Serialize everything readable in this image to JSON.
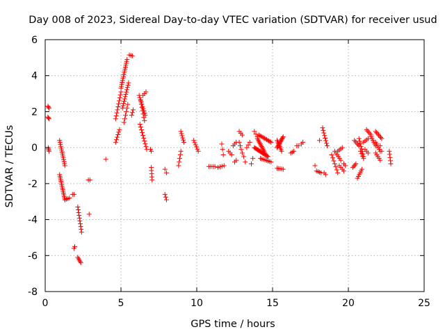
{
  "chart_data": {
    "type": "scatter",
    "title": "Day 008 of 2023, Sidereal Day-to-day VTEC variation (SDTVAR) for receiver usud",
    "xlabel": "GPS time / hours",
    "ylabel": "SDTVAR / TECUs",
    "xlim": [
      0,
      25
    ],
    "ylim": [
      -8,
      6
    ],
    "xticks": [
      0,
      5,
      10,
      15,
      20,
      25
    ],
    "yticks": [
      -8,
      -6,
      -4,
      -2,
      0,
      2,
      4,
      6
    ],
    "grid": true,
    "marker": "+",
    "marker_color": "#ff0000",
    "background": "#ffffff",
    "axis_color": "#000000",
    "grid_color": "#b0b0b0",
    "series": [
      {
        "name": "usud",
        "color": "#ff0000",
        "segments": [
          {
            "x0": 0.18,
            "y0": 2.3,
            "x1": 0.25,
            "y1": 2.2,
            "n": 3
          },
          {
            "x0": 0.18,
            "y0": 1.7,
            "x1": 0.25,
            "y1": 1.6,
            "n": 3
          },
          {
            "x0": 0.2,
            "y0": 0.0,
            "x1": 0.25,
            "y1": -0.2,
            "n": 4
          },
          {
            "x0": 0.95,
            "y0": 0.4,
            "x1": 1.3,
            "y1": -1.0,
            "n": 14
          },
          {
            "x0": 0.95,
            "y0": -1.5,
            "x1": 1.3,
            "y1": -2.9,
            "n": 16
          },
          {
            "x0": 1.3,
            "y0": -2.9,
            "x1": 1.6,
            "y1": -2.8,
            "n": 4
          },
          {
            "x0": 1.8,
            "y0": -2.6,
            "x1": 1.9,
            "y1": -2.6,
            "n": 2
          },
          {
            "x0": 1.9,
            "y0": -5.6,
            "x1": 1.95,
            "y1": -5.5,
            "n": 2
          },
          {
            "x0": 2.15,
            "y0": -3.3,
            "x1": 2.4,
            "y1": -4.7,
            "n": 10
          },
          {
            "x0": 2.15,
            "y0": -6.1,
            "x1": 2.35,
            "y1": -6.4,
            "n": 5
          },
          {
            "x0": 2.85,
            "y0": -1.8,
            "x1": 2.95,
            "y1": -1.8,
            "n": 2
          },
          {
            "x0": 2.9,
            "y0": -3.7,
            "x1": 2.9,
            "y1": -3.7,
            "n": 1
          },
          {
            "x0": 4.0,
            "y0": -0.65,
            "x1": 4.0,
            "y1": -0.65,
            "n": 1
          },
          {
            "x0": 4.65,
            "y0": 0.3,
            "x1": 4.9,
            "y1": 1.0,
            "n": 6
          },
          {
            "x0": 4.65,
            "y0": 1.6,
            "x1": 5.0,
            "y1": 3.1,
            "n": 10
          },
          {
            "x0": 5.0,
            "y0": 3.3,
            "x1": 5.4,
            "y1": 4.9,
            "n": 16
          },
          {
            "x0": 5.1,
            "y0": 2.2,
            "x1": 5.5,
            "y1": 3.6,
            "n": 12
          },
          {
            "x0": 5.2,
            "y0": 1.4,
            "x1": 5.45,
            "y1": 2.4,
            "n": 6
          },
          {
            "x0": 5.55,
            "y0": 5.15,
            "x1": 5.75,
            "y1": 5.1,
            "n": 3
          },
          {
            "x0": 5.7,
            "y0": 1.8,
            "x1": 5.8,
            "y1": 2.1,
            "n": 3
          },
          {
            "x0": 6.2,
            "y0": 2.9,
            "x1": 6.6,
            "y1": 1.8,
            "n": 10
          },
          {
            "x0": 6.3,
            "y0": 2.6,
            "x1": 6.55,
            "y1": 1.5,
            "n": 7
          },
          {
            "x0": 6.25,
            "y0": 1.3,
            "x1": 6.7,
            "y1": -0.1,
            "n": 10
          },
          {
            "x0": 6.45,
            "y0": 2.9,
            "x1": 6.65,
            "y1": 3.1,
            "n": 3
          },
          {
            "x0": 6.95,
            "y0": -0.1,
            "x1": 7.0,
            "y1": -0.2,
            "n": 2
          },
          {
            "x0": 7.0,
            "y0": -1.1,
            "x1": 7.05,
            "y1": -1.8,
            "n": 5
          },
          {
            "x0": 7.9,
            "y0": -1.2,
            "x1": 8.0,
            "y1": -1.4,
            "n": 2
          },
          {
            "x0": 7.9,
            "y0": -2.6,
            "x1": 8.0,
            "y1": -2.9,
            "n": 3
          },
          {
            "x0": 8.8,
            "y0": -1.0,
            "x1": 8.95,
            "y1": -0.2,
            "n": 5
          },
          {
            "x0": 8.95,
            "y0": 0.9,
            "x1": 9.15,
            "y1": 0.3,
            "n": 6
          },
          {
            "x0": 9.8,
            "y0": 0.4,
            "x1": 10.1,
            "y1": -0.2,
            "n": 6
          },
          {
            "x0": 10.8,
            "y0": -1.05,
            "x1": 11.2,
            "y1": -1.05,
            "n": 4
          },
          {
            "x0": 11.4,
            "y0": -1.1,
            "x1": 11.8,
            "y1": -1.0,
            "n": 4
          },
          {
            "x0": 11.65,
            "y0": 0.2,
            "x1": 11.75,
            "y1": -0.4,
            "n": 3
          },
          {
            "x0": 12.1,
            "y0": -0.2,
            "x1": 12.3,
            "y1": -0.4,
            "n": 3
          },
          {
            "x0": 12.4,
            "y0": 0.1,
            "x1": 12.6,
            "y1": 0.3,
            "n": 3
          },
          {
            "x0": 12.5,
            "y0": -0.8,
            "x1": 12.6,
            "y1": -0.7,
            "n": 2
          },
          {
            "x0": 12.8,
            "y0": 0.9,
            "x1": 13.0,
            "y1": 0.7,
            "n": 3
          },
          {
            "x0": 12.8,
            "y0": 0.3,
            "x1": 13.0,
            "y1": -0.3,
            "n": 4
          },
          {
            "x0": 13.1,
            "y0": -0.5,
            "x1": 13.2,
            "y1": -0.8,
            "n": 2
          },
          {
            "x0": 13.3,
            "y0": 0.0,
            "x1": 13.5,
            "y1": 0.3,
            "n": 3
          },
          {
            "x0": 13.6,
            "y0": -0.9,
            "x1": 13.7,
            "y1": -0.6,
            "n": 2
          },
          {
            "x0": 13.8,
            "y0": 0.9,
            "x1": 14.0,
            "y1": 0.6,
            "n": 3
          },
          {
            "x0": 13.8,
            "y0": 0.0,
            "x1": 14.7,
            "y1": -0.5,
            "n": 18
          },
          {
            "x0": 14.0,
            "y0": 0.5,
            "x1": 14.5,
            "y1": -0.3,
            "n": 12
          },
          {
            "x0": 14.1,
            "y0": 0.7,
            "x1": 14.9,
            "y1": 0.3,
            "n": 12
          },
          {
            "x0": 14.2,
            "y0": -0.6,
            "x1": 14.9,
            "y1": -0.8,
            "n": 8
          },
          {
            "x0": 15.3,
            "y0": 0.0,
            "x1": 15.7,
            "y1": 0.6,
            "n": 12
          },
          {
            "x0": 15.3,
            "y0": 0.4,
            "x1": 15.6,
            "y1": -0.2,
            "n": 8
          },
          {
            "x0": 15.3,
            "y0": -1.15,
            "x1": 15.7,
            "y1": -1.2,
            "n": 5
          },
          {
            "x0": 16.2,
            "y0": -0.3,
            "x1": 16.4,
            "y1": -0.2,
            "n": 3
          },
          {
            "x0": 16.6,
            "y0": 0.1,
            "x1": 16.7,
            "y1": 0.1,
            "n": 2
          },
          {
            "x0": 16.9,
            "y0": 0.2,
            "x1": 17.0,
            "y1": 0.3,
            "n": 2
          },
          {
            "x0": 17.8,
            "y0": -1.0,
            "x1": 17.8,
            "y1": -1.0,
            "n": 1
          },
          {
            "x0": 17.9,
            "y0": -1.3,
            "x1": 18.2,
            "y1": -1.4,
            "n": 4
          },
          {
            "x0": 18.1,
            "y0": 0.4,
            "x1": 18.1,
            "y1": 0.4,
            "n": 1
          },
          {
            "x0": 18.3,
            "y0": 1.1,
            "x1": 18.6,
            "y1": 0.1,
            "n": 8
          },
          {
            "x0": 18.4,
            "y0": -1.4,
            "x1": 18.5,
            "y1": -1.5,
            "n": 2
          },
          {
            "x0": 18.9,
            "y0": -0.4,
            "x1": 19.3,
            "y1": -1.4,
            "n": 7
          },
          {
            "x0": 19.1,
            "y0": -0.2,
            "x1": 19.5,
            "y1": -0.7,
            "n": 6
          },
          {
            "x0": 19.3,
            "y0": -0.2,
            "x1": 19.6,
            "y1": 0.0,
            "n": 4
          },
          {
            "x0": 19.4,
            "y0": -1.0,
            "x1": 19.7,
            "y1": -1.3,
            "n": 4
          },
          {
            "x0": 19.7,
            "y0": -0.9,
            "x1": 19.8,
            "y1": -1.0,
            "n": 2
          },
          {
            "x0": 20.3,
            "y0": -1.1,
            "x1": 20.5,
            "y1": -0.9,
            "n": 4
          },
          {
            "x0": 20.4,
            "y0": 0.4,
            "x1": 20.7,
            "y1": 0.1,
            "n": 5
          },
          {
            "x0": 20.6,
            "y0": -1.7,
            "x1": 20.9,
            "y1": -1.2,
            "n": 6
          },
          {
            "x0": 20.7,
            "y0": 0.5,
            "x1": 21.0,
            "y1": -0.5,
            "n": 8
          },
          {
            "x0": 20.8,
            "y0": -0.2,
            "x1": 21.0,
            "y1": -0.6,
            "n": 4
          },
          {
            "x0": 21.0,
            "y0": 0.3,
            "x1": 21.3,
            "y1": 0.5,
            "n": 4
          },
          {
            "x0": 21.1,
            "y0": -0.1,
            "x1": 21.3,
            "y1": -0.3,
            "n": 3
          },
          {
            "x0": 21.2,
            "y0": 1.0,
            "x1": 21.5,
            "y1": 0.7,
            "n": 5
          },
          {
            "x0": 21.5,
            "y0": 0.6,
            "x1": 21.8,
            "y1": 0.1,
            "n": 6
          },
          {
            "x0": 21.8,
            "y0": 0.9,
            "x1": 22.2,
            "y1": 0.5,
            "n": 7
          },
          {
            "x0": 21.8,
            "y0": 0.3,
            "x1": 22.1,
            "y1": -0.2,
            "n": 6
          },
          {
            "x0": 21.8,
            "y0": -0.3,
            "x1": 22.1,
            "y1": -0.7,
            "n": 5
          },
          {
            "x0": 22.1,
            "y0": 0.1,
            "x1": 22.2,
            "y1": -0.2,
            "n": 2
          },
          {
            "x0": 22.7,
            "y0": -0.2,
            "x1": 22.8,
            "y1": -0.9,
            "n": 5
          }
        ]
      }
    ]
  }
}
